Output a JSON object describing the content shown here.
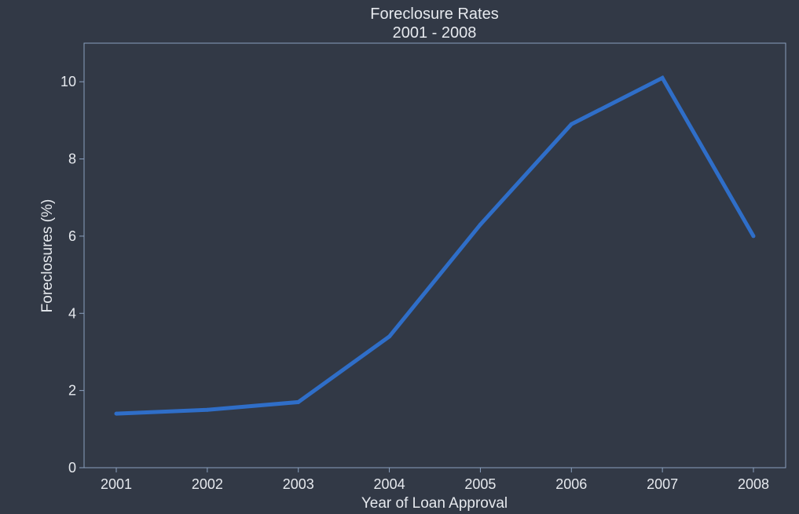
{
  "chart_data": {
    "type": "line",
    "title": "Foreclosure Rates",
    "subtitle": "2001 - 2008",
    "xlabel": "Year of Loan Approval",
    "ylabel": "Foreclosures (%)",
    "x": [
      "2001",
      "2002",
      "2003",
      "2004",
      "2005",
      "2006",
      "2007",
      "2008"
    ],
    "series": [
      {
        "values": [
          1.4,
          1.5,
          1.7,
          3.4,
          6.3,
          8.9,
          10.1,
          6.0
        ]
      }
    ],
    "ylim": [
      0,
      11
    ],
    "yticks": [
      "0",
      "2",
      "4",
      "6",
      "8",
      "10"
    ],
    "grid": false,
    "legend": "none"
  },
  "colors": {
    "background": "#323946",
    "line": "#2f6ec8",
    "text": "#e6e9ee",
    "axis": "#8aa0bd"
  }
}
